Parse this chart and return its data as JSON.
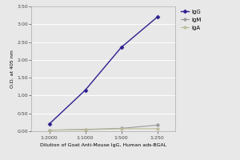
{
  "x_labels": [
    "1:2000",
    "1:1000",
    "1:500",
    "1:250"
  ],
  "x_positions": [
    1,
    2,
    3,
    4
  ],
  "IgG": [
    0.2,
    1.15,
    2.35,
    3.2
  ],
  "IgM": [
    0.03,
    0.05,
    0.08,
    0.17
  ],
  "IgA": [
    0.03,
    0.04,
    0.07,
    0.07
  ],
  "IgG_color": "#2c1f8f",
  "IgM_color": "#999999",
  "IgA_color": "#bbbb99",
  "ylabel": "O.D. at 405 nm",
  "xlabel": "Dilution of Goat Anti-Mouse IgG, Human ads-BGAL",
  "ylim": [
    0.0,
    3.5
  ],
  "yticks": [
    0.0,
    0.5,
    1.0,
    1.5,
    2.0,
    2.5,
    3.0,
    3.5
  ],
  "axis_fontsize": 4.5,
  "legend_fontsize": 5,
  "tick_fontsize": 4.5,
  "background_color": "#e8e8e8",
  "plot_bg_color": "#e8e8e8"
}
